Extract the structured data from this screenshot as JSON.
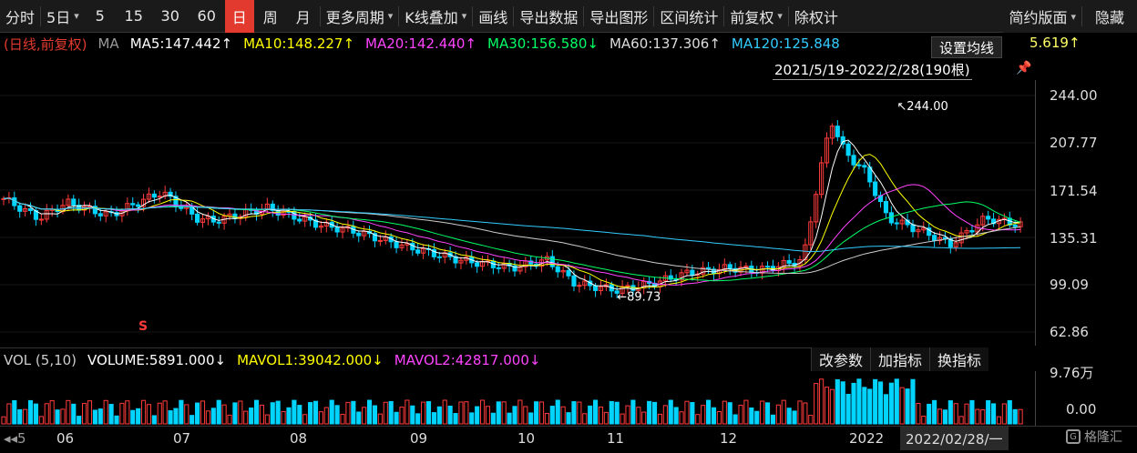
{
  "toolbar": {
    "periods": [
      "分时",
      "5日",
      "5",
      "15",
      "30",
      "60",
      "日",
      "周",
      "月"
    ],
    "active_period": "日",
    "more_periods": "更多周期",
    "kline_overlay": "K线叠加",
    "draw": "画线",
    "export_data": "导出数据",
    "export_chart": "导出图形",
    "interval_stats": "区间统计",
    "adjust": "前复权",
    "ex_rights": "除权计",
    "simple_layout": "简约版面",
    "hide": "隐藏"
  },
  "ma_bar": {
    "mode": "(日线,前复权)",
    "ma_label": "MA",
    "ma5": "MA5:147.442↑",
    "ma10": "MA10:148.227↑",
    "ma20": "MA20:142.440↑",
    "ma30": "MA30:156.580↓",
    "ma60": "MA60:137.306↑",
    "ma120": "MA120:125.848",
    "ma250_tail": "5.619↑",
    "setting_button": "设置均线"
  },
  "range": "2021/5/19-2022/2/28(190根)",
  "price_axis": [
    "244.00",
    "207.77",
    "171.54",
    "135.31",
    "99.09",
    "62.86"
  ],
  "annotations": {
    "high": "↖244.00",
    "low": "←89.73",
    "signal": "S"
  },
  "vol_bar": {
    "title": "VOL (5,10)",
    "volume": "VOLUME:5891.000↓",
    "mavol1": "MAVOL1:39042.000↓",
    "mavol2": "MAVOL2:42817.000↓",
    "buttons": [
      "改参数",
      "加指标",
      "换指标"
    ]
  },
  "vol_axis": [
    "9.76万",
    "0.00"
  ],
  "date_axis": [
    "◂◂5",
    "06",
    "07",
    "08",
    "09",
    "10",
    "11",
    "12",
    "2022"
  ],
  "date_cursor": "2022/02/28/一",
  "logo_text": "格隆汇",
  "colors": {
    "up": "#ff3b3b",
    "down": "#00d4ff",
    "ma5": "#ffffff",
    "ma10": "#ffff00",
    "ma20": "#ff44ff",
    "ma30": "#00ff66",
    "ma60": "#cccccc",
    "ma120": "#33ccff",
    "active": "#e23a2e"
  },
  "chart_data": {
    "type": "candlestick",
    "ylim": [
      62.86,
      244.0
    ],
    "high": 244.0,
    "low": 89.73,
    "vol_ylim": [
      0,
      97600
    ]
  }
}
